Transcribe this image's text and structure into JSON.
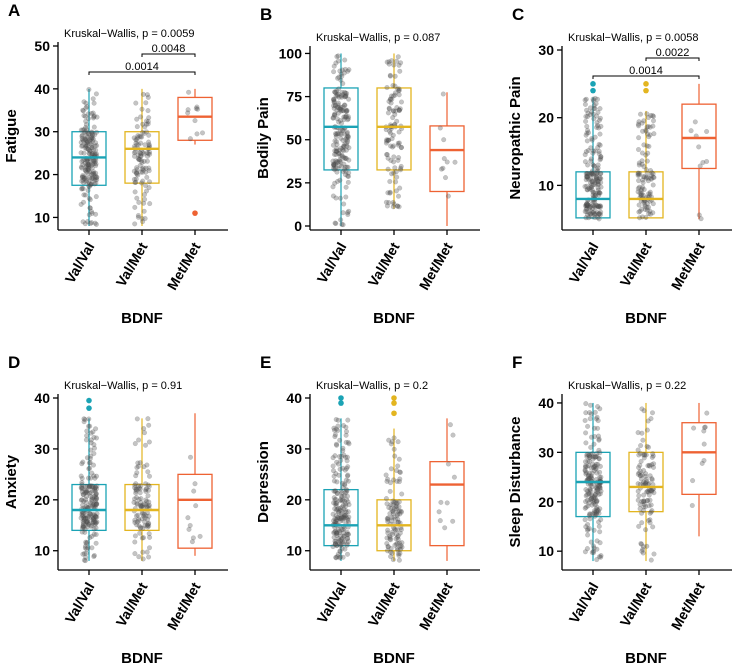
{
  "figure": {
    "x_axis_label": "BDNF",
    "genotypes": [
      "Val/Val",
      "Val/Met",
      "Met/Met"
    ],
    "colors": {
      "Val/Val": "#1ba3b5",
      "Val/Met": "#e3b520",
      "Met/Met": "#ee6233"
    }
  },
  "chart_data": [
    {
      "type": "box",
      "panel": "A",
      "ylabel": "Fatigue",
      "ylim": [
        8,
        50
      ],
      "yticks": [
        10,
        20,
        30,
        40,
        50
      ],
      "test_label": "Kruskal−Wallis, p = 0.0059",
      "comparisons": [
        {
          "groups": [
            "Val/Met",
            "Met/Met"
          ],
          "label": "0.0048",
          "level": 1
        },
        {
          "groups": [
            "Val/Val",
            "Met/Met"
          ],
          "label": "0.0014",
          "level": 0
        }
      ],
      "groups": [
        {
          "name": "Val/Val",
          "min": 8,
          "q1": 17.5,
          "median": 24,
          "q3": 30,
          "max": 40,
          "outliers": [],
          "n": 200
        },
        {
          "name": "Val/Met",
          "min": 8,
          "q1": 18,
          "median": 26,
          "q3": 30,
          "max": 40,
          "outliers": [],
          "n": 110
        },
        {
          "name": "Met/Met",
          "min": 27,
          "q1": 28,
          "median": 33.5,
          "q3": 38,
          "max": 40,
          "outliers": [
            11
          ],
          "n": 10
        }
      ]
    },
    {
      "type": "box",
      "panel": "B",
      "ylabel": "Bodily Pain",
      "ylim": [
        0,
        102
      ],
      "yticks": [
        0,
        25,
        50,
        75,
        100
      ],
      "test_label": "Kruskal−Wallis, p = 0.087",
      "comparisons": [],
      "groups": [
        {
          "name": "Val/Val",
          "min": 0,
          "q1": 32.5,
          "median": 57.5,
          "q3": 80,
          "max": 100,
          "outliers": [],
          "n": 200
        },
        {
          "name": "Val/Met",
          "min": 10,
          "q1": 32.5,
          "median": 57.5,
          "q3": 80,
          "max": 100,
          "outliers": [],
          "n": 110
        },
        {
          "name": "Met/Met",
          "min": 0,
          "q1": 20,
          "median": 44,
          "q3": 58,
          "max": 77.5,
          "outliers": [],
          "n": 10
        }
      ]
    },
    {
      "type": "box",
      "panel": "C",
      "ylabel": "Neuropathic Pain",
      "ylim": [
        4,
        30
      ],
      "yticks": [
        10,
        20,
        30
      ],
      "test_label": "Kruskal−Wallis, p = 0.0058",
      "comparisons": [
        {
          "groups": [
            "Val/Met",
            "Met/Met"
          ],
          "label": "0.0022",
          "level": 1
        },
        {
          "groups": [
            "Val/Val",
            "Met/Met"
          ],
          "label": "0.0014",
          "level": 0
        }
      ],
      "groups": [
        {
          "name": "Val/Val",
          "min": 5,
          "q1": 5.2,
          "median": 8,
          "q3": 12,
          "max": 23,
          "outliers": [
            24,
            25
          ],
          "n": 200
        },
        {
          "name": "Val/Met",
          "min": 5,
          "q1": 5.2,
          "median": 8,
          "q3": 12,
          "max": 21,
          "outliers": [
            24,
            25
          ],
          "n": 110
        },
        {
          "name": "Met/Met",
          "min": 5,
          "q1": 12.5,
          "median": 17,
          "q3": 22,
          "max": 25,
          "outliers": [],
          "n": 10
        }
      ]
    },
    {
      "type": "box",
      "panel": "D",
      "ylabel": "Anxiety",
      "ylim": [
        7,
        40
      ],
      "yticks": [
        10,
        20,
        30,
        40
      ],
      "test_label": "Kruskal−Wallis, p = 0.91",
      "comparisons": [],
      "groups": [
        {
          "name": "Val/Val",
          "min": 8,
          "q1": 14,
          "median": 18,
          "q3": 23,
          "max": 36,
          "outliers": [
            38,
            39.5
          ],
          "n": 200
        },
        {
          "name": "Val/Met",
          "min": 8,
          "q1": 14,
          "median": 18,
          "q3": 23,
          "max": 36,
          "outliers": [],
          "n": 110
        },
        {
          "name": "Met/Met",
          "min": 9,
          "q1": 10.5,
          "median": 20,
          "q3": 25,
          "max": 37,
          "outliers": [],
          "n": 10
        }
      ]
    },
    {
      "type": "box",
      "panel": "E",
      "ylabel": "Depression",
      "ylim": [
        7,
        40
      ],
      "yticks": [
        10,
        20,
        30,
        40
      ],
      "test_label": "Kruskal−Wallis, p = 0.2",
      "comparisons": [],
      "groups": [
        {
          "name": "Val/Val",
          "min": 8,
          "q1": 11,
          "median": 15,
          "q3": 22,
          "max": 36,
          "outliers": [
            39,
            40
          ],
          "n": 200
        },
        {
          "name": "Val/Met",
          "min": 8,
          "q1": 10,
          "median": 15,
          "q3": 20,
          "max": 34,
          "outliers": [
            37,
            39,
            40
          ],
          "n": 110
        },
        {
          "name": "Met/Met",
          "min": 8,
          "q1": 11,
          "median": 23,
          "q3": 27.5,
          "max": 36,
          "outliers": [],
          "n": 10
        }
      ]
    },
    {
      "type": "box",
      "panel": "F",
      "ylabel": "Sleep Disturbance",
      "ylim": [
        7,
        41
      ],
      "yticks": [
        10,
        20,
        30,
        40
      ],
      "test_label": "Kruskal−Wallis, p = 0.22",
      "comparisons": [],
      "groups": [
        {
          "name": "Val/Val",
          "min": 8,
          "q1": 17,
          "median": 24,
          "q3": 30,
          "max": 40,
          "outliers": [],
          "n": 200
        },
        {
          "name": "Val/Met",
          "min": 8,
          "q1": 18,
          "median": 23,
          "q3": 30,
          "max": 40,
          "outliers": [],
          "n": 110
        },
        {
          "name": "Met/Met",
          "min": 13,
          "q1": 21.5,
          "median": 30,
          "q3": 36,
          "max": 40,
          "outliers": [],
          "n": 10
        }
      ]
    }
  ]
}
